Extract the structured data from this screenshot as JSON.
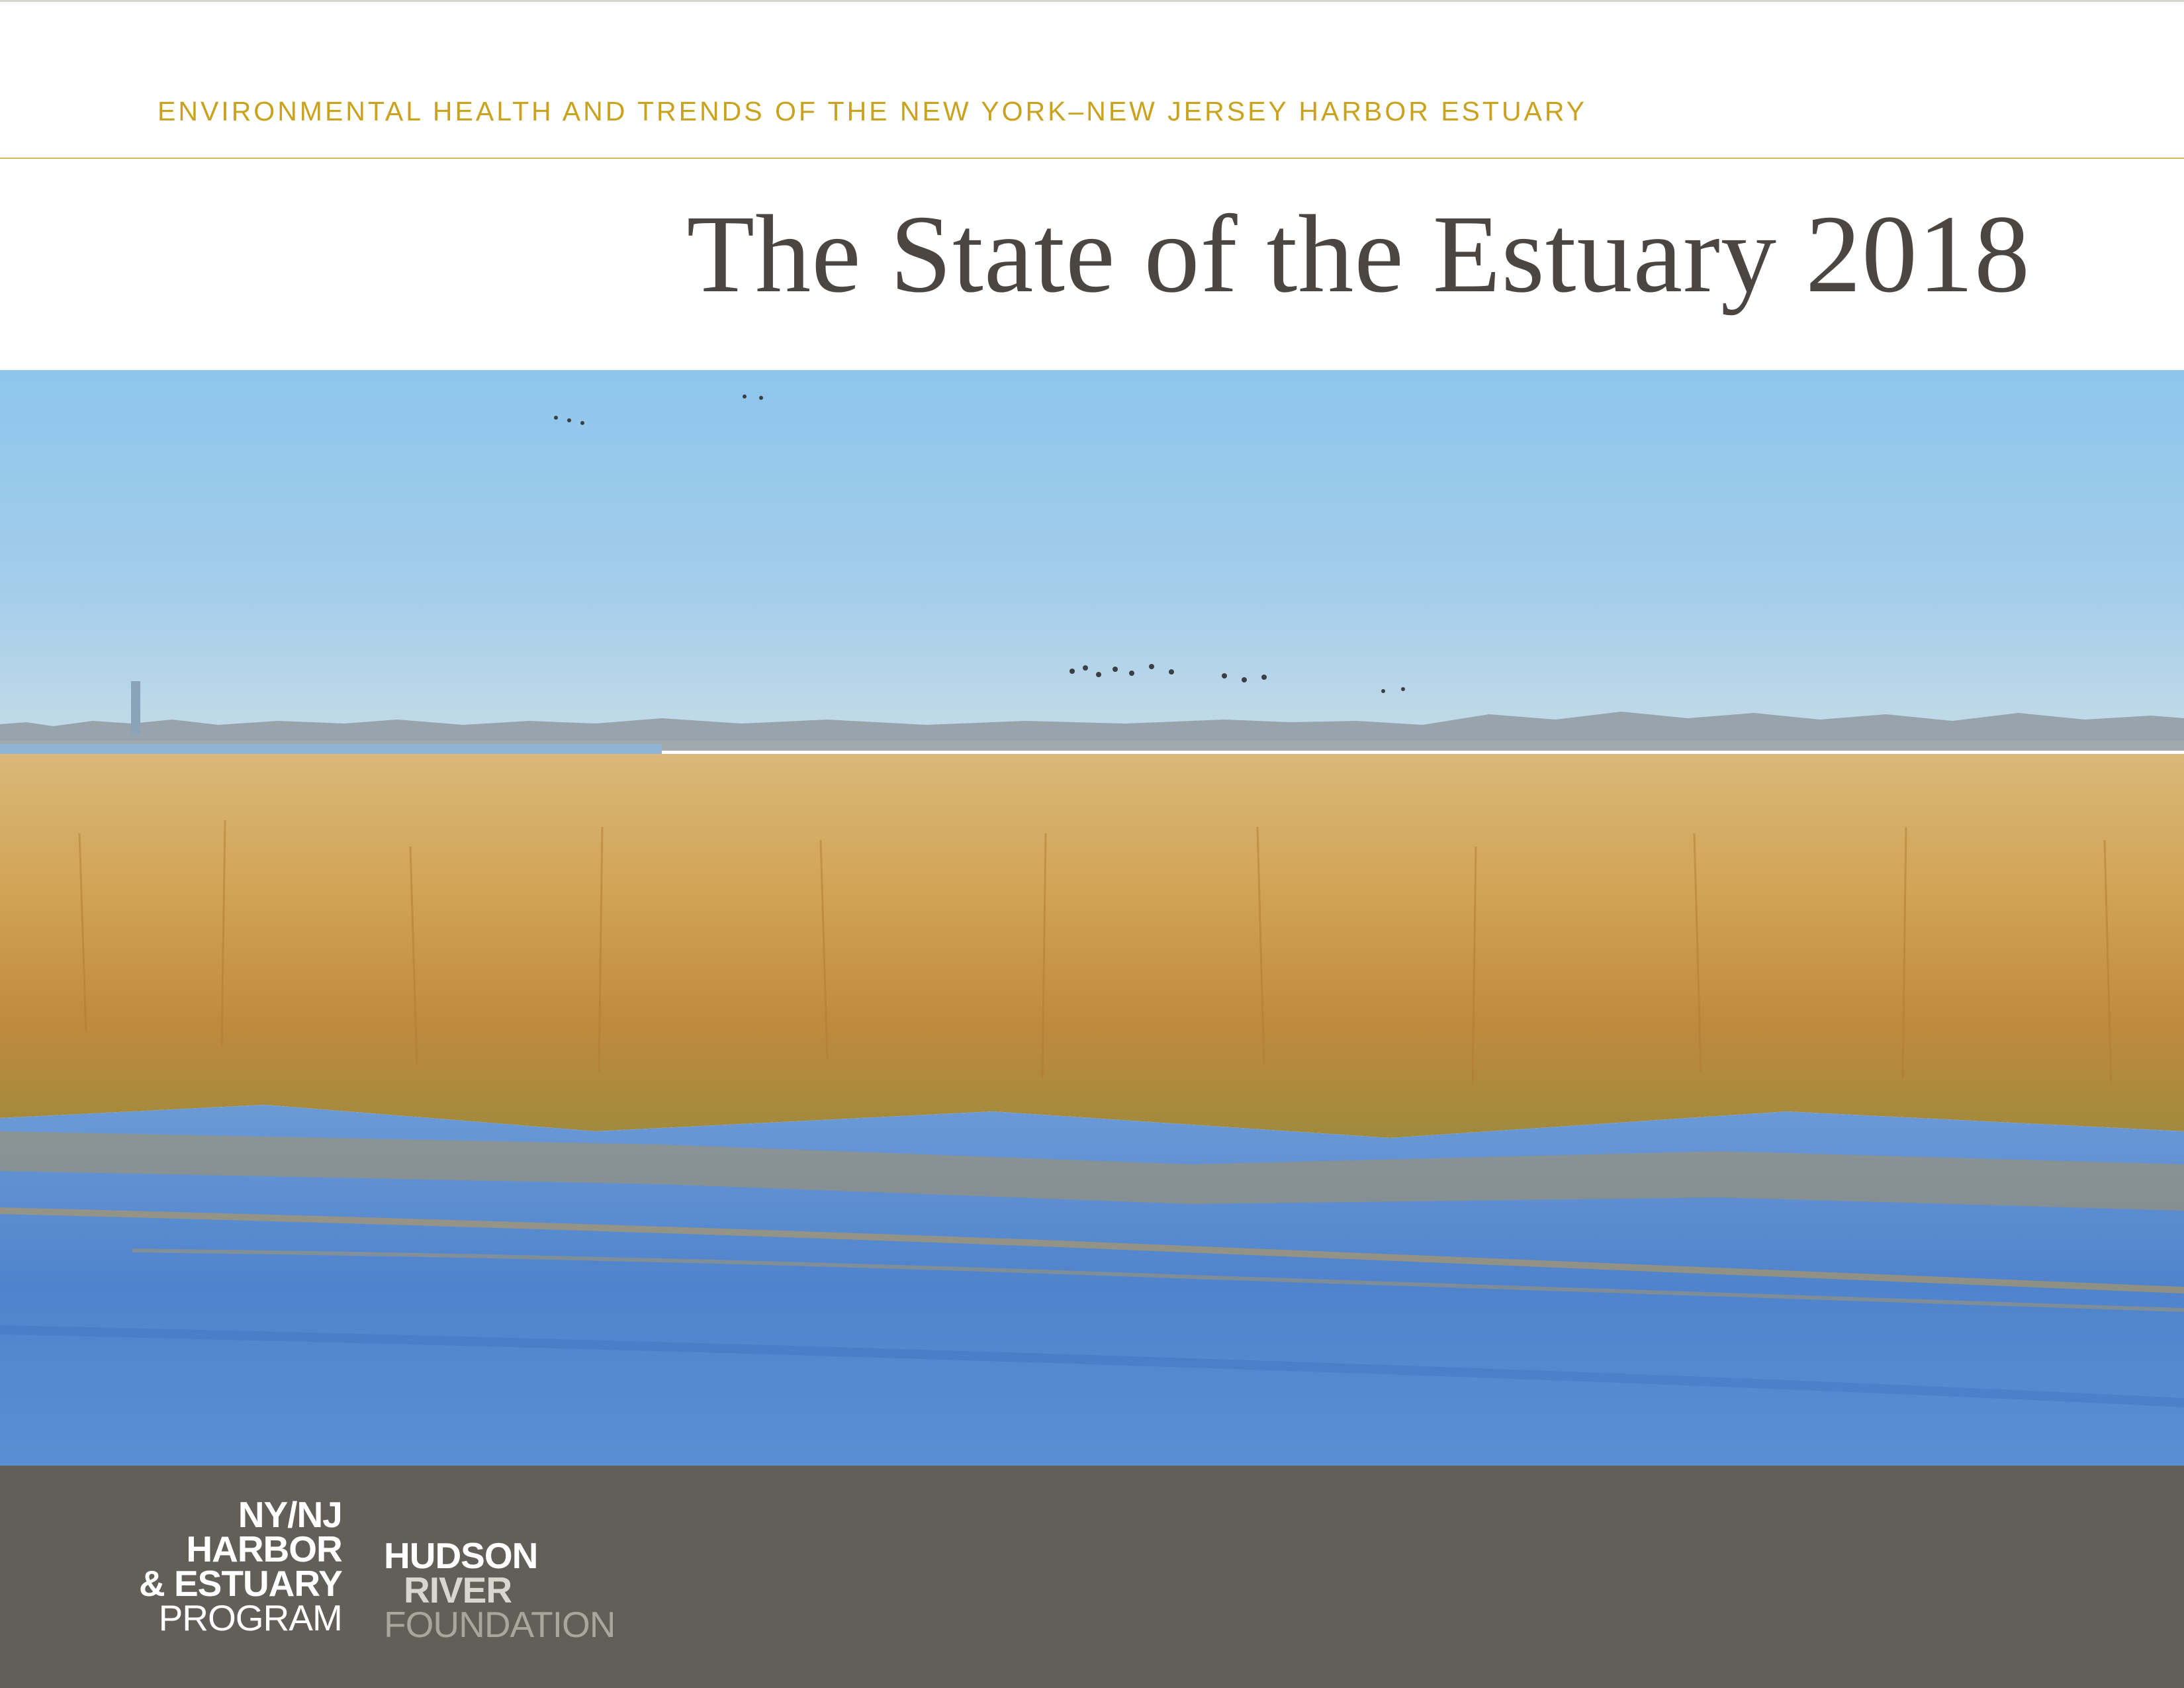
{
  "header": {
    "subtitle": "ENVIRONMENTAL HEALTH AND TRENDS OF THE NEW YORK–NEW JERSEY HARBOR ESTUARY",
    "title": "The State of the Estuary 2018"
  },
  "photo": {
    "colors": {
      "sky_top": "#8ec6ec",
      "sky_bottom": "#b9d6ea",
      "grass": "#c89a48",
      "water": "#4f86cc"
    }
  },
  "footer": {
    "background": "#625f58",
    "logo_harbor_estuary": [
      "NY/NJ",
      "HARBOR",
      "& ESTUARY",
      "PROGRAM"
    ],
    "logo_hudson_river": [
      "HUDSON",
      "RIVER",
      "FOUNDATION"
    ]
  }
}
